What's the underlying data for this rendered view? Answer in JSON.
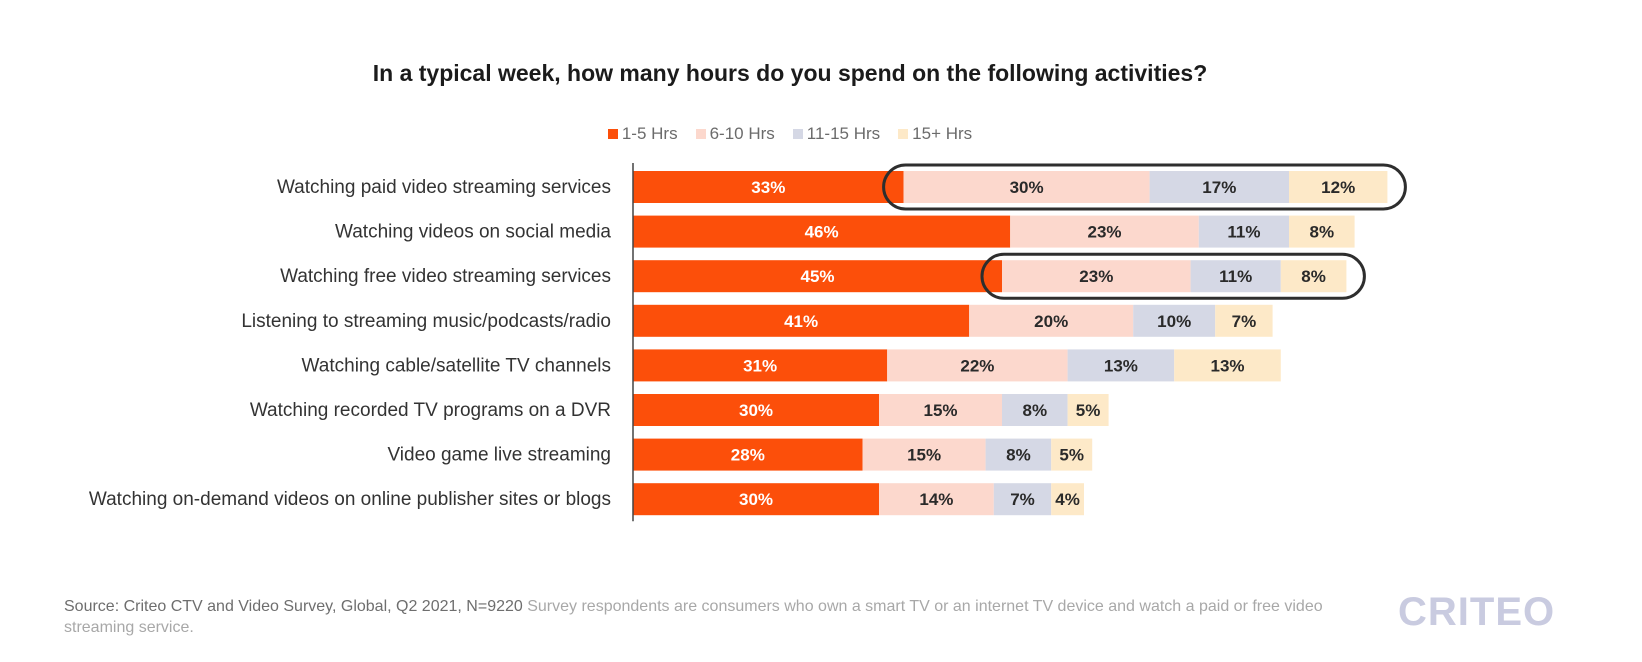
{
  "chart_data": {
    "type": "bar",
    "orientation": "horizontal",
    "stacked": true,
    "title": "In a typical week, how many hours do you spend on the following activities?",
    "legend_position": "top",
    "grid": false,
    "categories": [
      "Watching paid video streaming services",
      "Watching videos on social media",
      "Watching free video streaming services",
      "Listening to streaming music/podcasts/radio",
      "Watching cable/satellite TV channels",
      "Watching recorded TV programs on a DVR",
      "Video game live streaming",
      "Watching on-demand videos on online publisher sites or blogs"
    ],
    "series": [
      {
        "name": "1-5 Hrs",
        "color": "#fc4f0a",
        "label_color": "#ffffff",
        "values": [
          33,
          46,
          45,
          41,
          31,
          30,
          28,
          30
        ]
      },
      {
        "name": "6-10 Hrs",
        "color": "#fcd8cd",
        "label_color": "#2a2a2a",
        "values": [
          30,
          23,
          23,
          20,
          22,
          15,
          15,
          14
        ]
      },
      {
        "name": "11-15 Hrs",
        "color": "#d5d8e5",
        "label_color": "#2a2a2a",
        "values": [
          17,
          11,
          11,
          10,
          13,
          8,
          8,
          7
        ]
      },
      {
        "name": "15+ Hrs",
        "color": "#fde9c8",
        "label_color": "#2a2a2a",
        "values": [
          12,
          8,
          8,
          7,
          13,
          5,
          5,
          4
        ]
      }
    ],
    "labels": [
      [
        "33%",
        "30%",
        "17%",
        "12%"
      ],
      [
        "46%",
        "23%",
        "11%",
        "8%"
      ],
      [
        "45%",
        "23%",
        "11%",
        "8%"
      ],
      [
        "41%",
        "20%",
        "10%",
        "7%"
      ],
      [
        "31%",
        "22%",
        "13%",
        "13%"
      ],
      [
        "30%",
        "15%",
        "8%",
        "5%"
      ],
      [
        "28%",
        "15%",
        "8%",
        "5%"
      ],
      [
        "30%",
        "14%",
        "7%",
        "4%"
      ]
    ],
    "highlighted_rows": [
      0,
      2
    ]
  },
  "footer": {
    "source_label": "Source: Criteo CTV and Video Survey, Global, Q2 2021, N=9220",
    "note": " Survey respondents are consumers who own a smart TV or an internet TV device and watch a paid or free video streaming service.",
    "logo_text": "CRITEO"
  }
}
